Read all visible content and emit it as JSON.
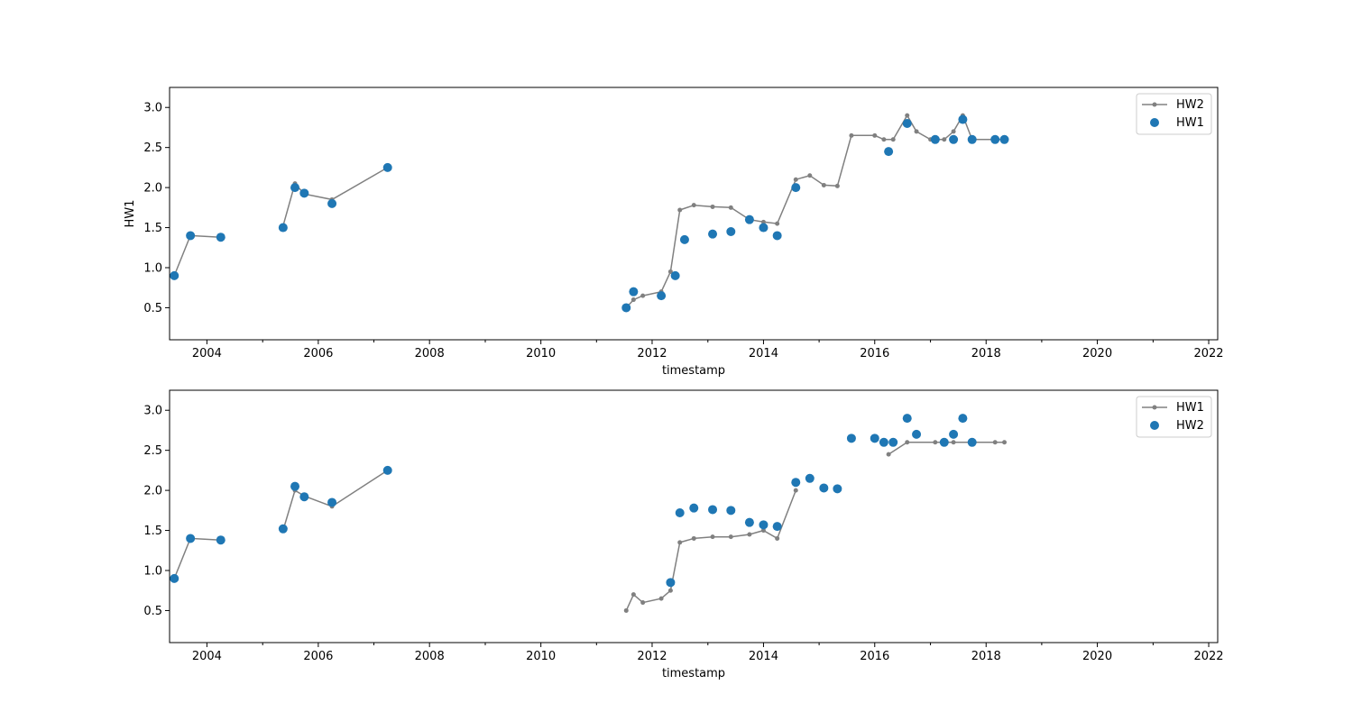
{
  "chart_data": [
    {
      "type": "scatter",
      "xlabel": "timestamp",
      "ylabel": "HW1",
      "xlim": [
        "2003-05-01",
        "2022-03-01"
      ],
      "ylim": [
        0.1,
        3.25
      ],
      "x_ticks": [
        "2004",
        "2006",
        "2008",
        "2010",
        "2012",
        "2014",
        "2016",
        "2018",
        "2020",
        "2022"
      ],
      "y_ticks": [
        "0.5",
        "1.0",
        "1.5",
        "2.0",
        "2.5",
        "3.0"
      ],
      "legend_position": "top-right",
      "legend": [
        "HW2",
        "HW1"
      ],
      "series": [
        {
          "name": "HW2",
          "style": "line-with-dots",
          "color": "#808080",
          "x": [
            "2003-06-01",
            "2003-09-15",
            "2004-04-01",
            "2005-05-15",
            "2005-08-01",
            "2005-10-01",
            "2006-04-01",
            "2007-04-01",
            "2011-07-15",
            "2011-09-01",
            "2011-11-01",
            "2012-03-01",
            "2012-05-01",
            "2012-07-01",
            "2012-10-01",
            "2013-02-01",
            "2013-06-01",
            "2013-10-01",
            "2014-01-01",
            "2014-04-01",
            "2014-08-01",
            "2014-11-01",
            "2015-02-01",
            "2015-05-01",
            "2015-08-01",
            "2016-01-01",
            "2016-03-01",
            "2016-05-01",
            "2016-08-01",
            "2016-10-01",
            "2017-01-01",
            "2017-04-01",
            "2017-06-01",
            "2017-08-01",
            "2017-10-01",
            "2018-03-01",
            "2018-05-01"
          ],
          "y": [
            0.9,
            1.4,
            1.38,
            1.52,
            2.05,
            1.92,
            1.85,
            2.25,
            0.5,
            0.6,
            0.65,
            0.7,
            0.95,
            1.72,
            1.78,
            1.76,
            1.75,
            1.6,
            1.57,
            1.55,
            2.1,
            2.15,
            2.03,
            2.02,
            2.65,
            2.65,
            2.6,
            2.6,
            2.9,
            2.7,
            2.6,
            2.6,
            2.7,
            2.9,
            2.6,
            2.6,
            2.6
          ]
        },
        {
          "name": "HW1",
          "style": "scatter",
          "color": "#1f77b4",
          "x": [
            "2003-06-01",
            "2003-09-15",
            "2004-04-01",
            "2005-05-15",
            "2005-08-01",
            "2005-10-01",
            "2006-04-01",
            "2007-04-01",
            "2011-07-15",
            "2011-09-01",
            "2012-03-01",
            "2012-06-01",
            "2012-08-01",
            "2013-02-01",
            "2013-06-01",
            "2013-10-01",
            "2014-01-01",
            "2014-04-01",
            "2014-08-01",
            "2016-04-01",
            "2016-08-01",
            "2017-02-01",
            "2017-06-01",
            "2017-08-01",
            "2017-10-01",
            "2018-03-01",
            "2018-05-01"
          ],
          "y": [
            0.9,
            1.4,
            1.38,
            1.5,
            2.0,
            1.93,
            1.8,
            2.25,
            0.5,
            0.7,
            0.65,
            0.9,
            1.35,
            1.42,
            1.45,
            1.6,
            1.5,
            1.4,
            2.0,
            2.45,
            2.8,
            2.6,
            2.6,
            2.85,
            2.6,
            2.6,
            2.6
          ]
        }
      ]
    },
    {
      "type": "scatter",
      "xlabel": "timestamp",
      "ylabel": "",
      "xlim": [
        "2003-05-01",
        "2022-03-01"
      ],
      "ylim": [
        0.1,
        3.25
      ],
      "x_ticks": [
        "2004",
        "2006",
        "2008",
        "2010",
        "2012",
        "2014",
        "2016",
        "2018",
        "2020",
        "2022"
      ],
      "y_ticks": [
        "0.5",
        "1.0",
        "1.5",
        "2.0",
        "2.5",
        "3.0"
      ],
      "legend_position": "top-right",
      "legend": [
        "HW1",
        "HW2"
      ],
      "series": [
        {
          "name": "HW1",
          "style": "line-with-dots",
          "color": "#808080",
          "x": [
            "2003-06-01",
            "2003-09-15",
            "2004-04-01",
            "2005-05-15",
            "2005-08-01",
            "2005-10-01",
            "2006-04-01",
            "2007-04-01",
            "2011-07-15",
            "2011-09-01",
            "2011-11-01",
            "2012-03-01",
            "2012-05-01",
            "2012-07-01",
            "2012-10-01",
            "2013-02-01",
            "2013-06-01",
            "2013-10-01",
            "2014-01-01",
            "2014-04-01",
            "2014-08-01",
            "2016-04-01",
            "2016-08-01",
            "2017-02-01",
            "2017-06-01",
            "2017-10-01",
            "2018-03-01",
            "2018-05-01"
          ],
          "y": [
            0.9,
            1.4,
            1.38,
            1.5,
            2.0,
            1.93,
            1.8,
            2.25,
            0.5,
            0.7,
            0.6,
            0.65,
            0.75,
            1.35,
            1.4,
            1.42,
            1.42,
            1.45,
            1.5,
            1.4,
            2.0,
            2.45,
            2.6,
            2.6,
            2.6,
            2.6,
            2.6,
            2.6
          ]
        },
        {
          "name": "HW2",
          "style": "scatter",
          "color": "#1f77b4",
          "x": [
            "2003-06-01",
            "2003-09-15",
            "2004-04-01",
            "2005-05-15",
            "2005-08-01",
            "2005-10-01",
            "2006-04-01",
            "2007-04-01",
            "2012-05-01",
            "2012-07-01",
            "2012-10-01",
            "2013-02-01",
            "2013-06-01",
            "2013-10-01",
            "2014-01-01",
            "2014-04-01",
            "2014-08-01",
            "2014-11-01",
            "2015-02-01",
            "2015-05-01",
            "2015-08-01",
            "2016-01-01",
            "2016-03-01",
            "2016-05-01",
            "2016-08-01",
            "2016-10-01",
            "2017-04-01",
            "2017-06-01",
            "2017-08-01",
            "2017-10-01"
          ],
          "y": [
            0.9,
            1.4,
            1.38,
            1.52,
            2.05,
            1.92,
            1.85,
            2.25,
            0.85,
            1.72,
            1.78,
            1.76,
            1.75,
            1.6,
            1.57,
            1.55,
            2.1,
            2.15,
            2.03,
            2.02,
            2.65,
            2.65,
            2.6,
            2.6,
            2.9,
            2.7,
            2.6,
            2.7,
            2.9,
            2.6
          ]
        }
      ]
    }
  ]
}
